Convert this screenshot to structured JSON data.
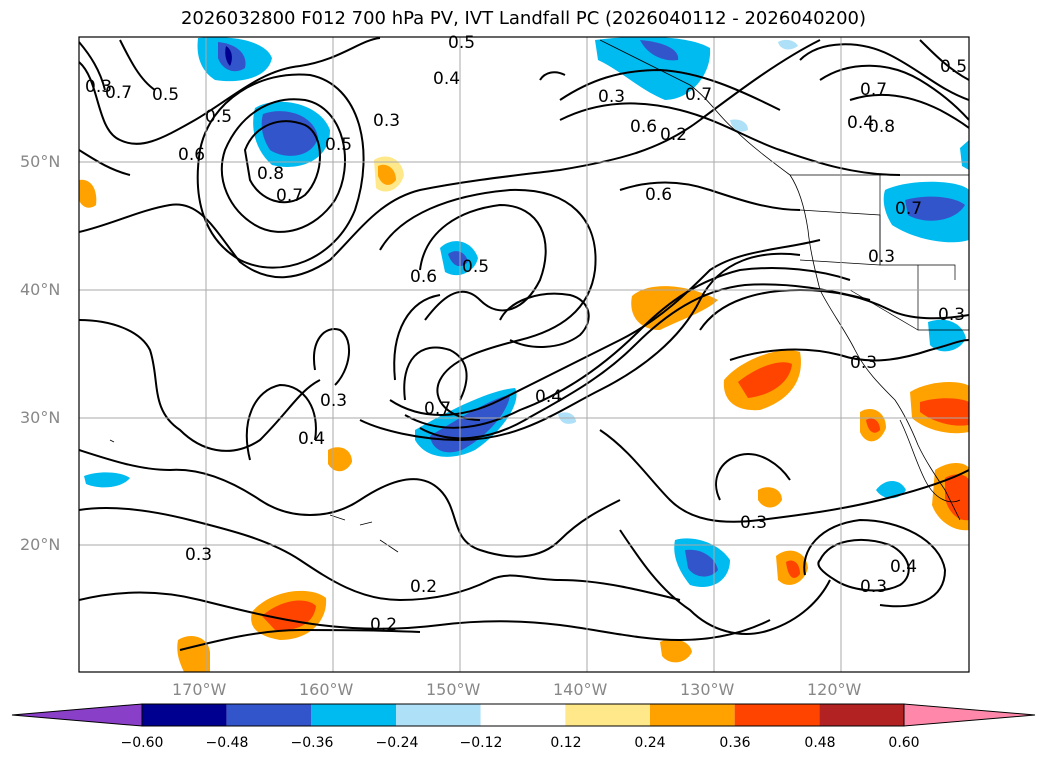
{
  "title": "2026032800 F012 700 hPa PV, IVT Landfall PC (2026040112 - 2026040200)",
  "lat_labels": [
    "50°N",
    "40°N",
    "30°N",
    "20°N"
  ],
  "lon_labels": [
    "170°W",
    "160°W",
    "150°W",
    "140°W",
    "130°W",
    "120°W"
  ],
  "contour_labels": [
    "0.5",
    "0.4",
    "0.3",
    "0.7",
    "0.8",
    "0.5",
    "0.6",
    "0.8",
    "0.7",
    "0.5",
    "0.3",
    "0.2",
    "0.6",
    "0.7",
    "0.4",
    "0.5",
    "0.7",
    "0.5",
    "0.3",
    "0.6",
    "0.7",
    "0.6",
    "0.5",
    "0.3",
    "0.3",
    "0.3",
    "0.7",
    "0.4",
    "0.3",
    "0.4",
    "0.2",
    "0.2",
    "0.3",
    "0.3",
    "0.4",
    "0.3"
  ],
  "colorbar": {
    "ticks": [
      "−0.60",
      "−0.48",
      "−0.36",
      "−0.24",
      "−0.12",
      "0.12",
      "0.24",
      "0.36",
      "0.48",
      "0.60"
    ],
    "colors": [
      "#8a3fc8",
      "#000090",
      "#3355cc",
      "#00bbf0",
      "#aee0f8",
      "#ffffff",
      "#ffe88a",
      "#ffa200",
      "#ff4400",
      "#b22222",
      "#ff88aa"
    ]
  }
}
